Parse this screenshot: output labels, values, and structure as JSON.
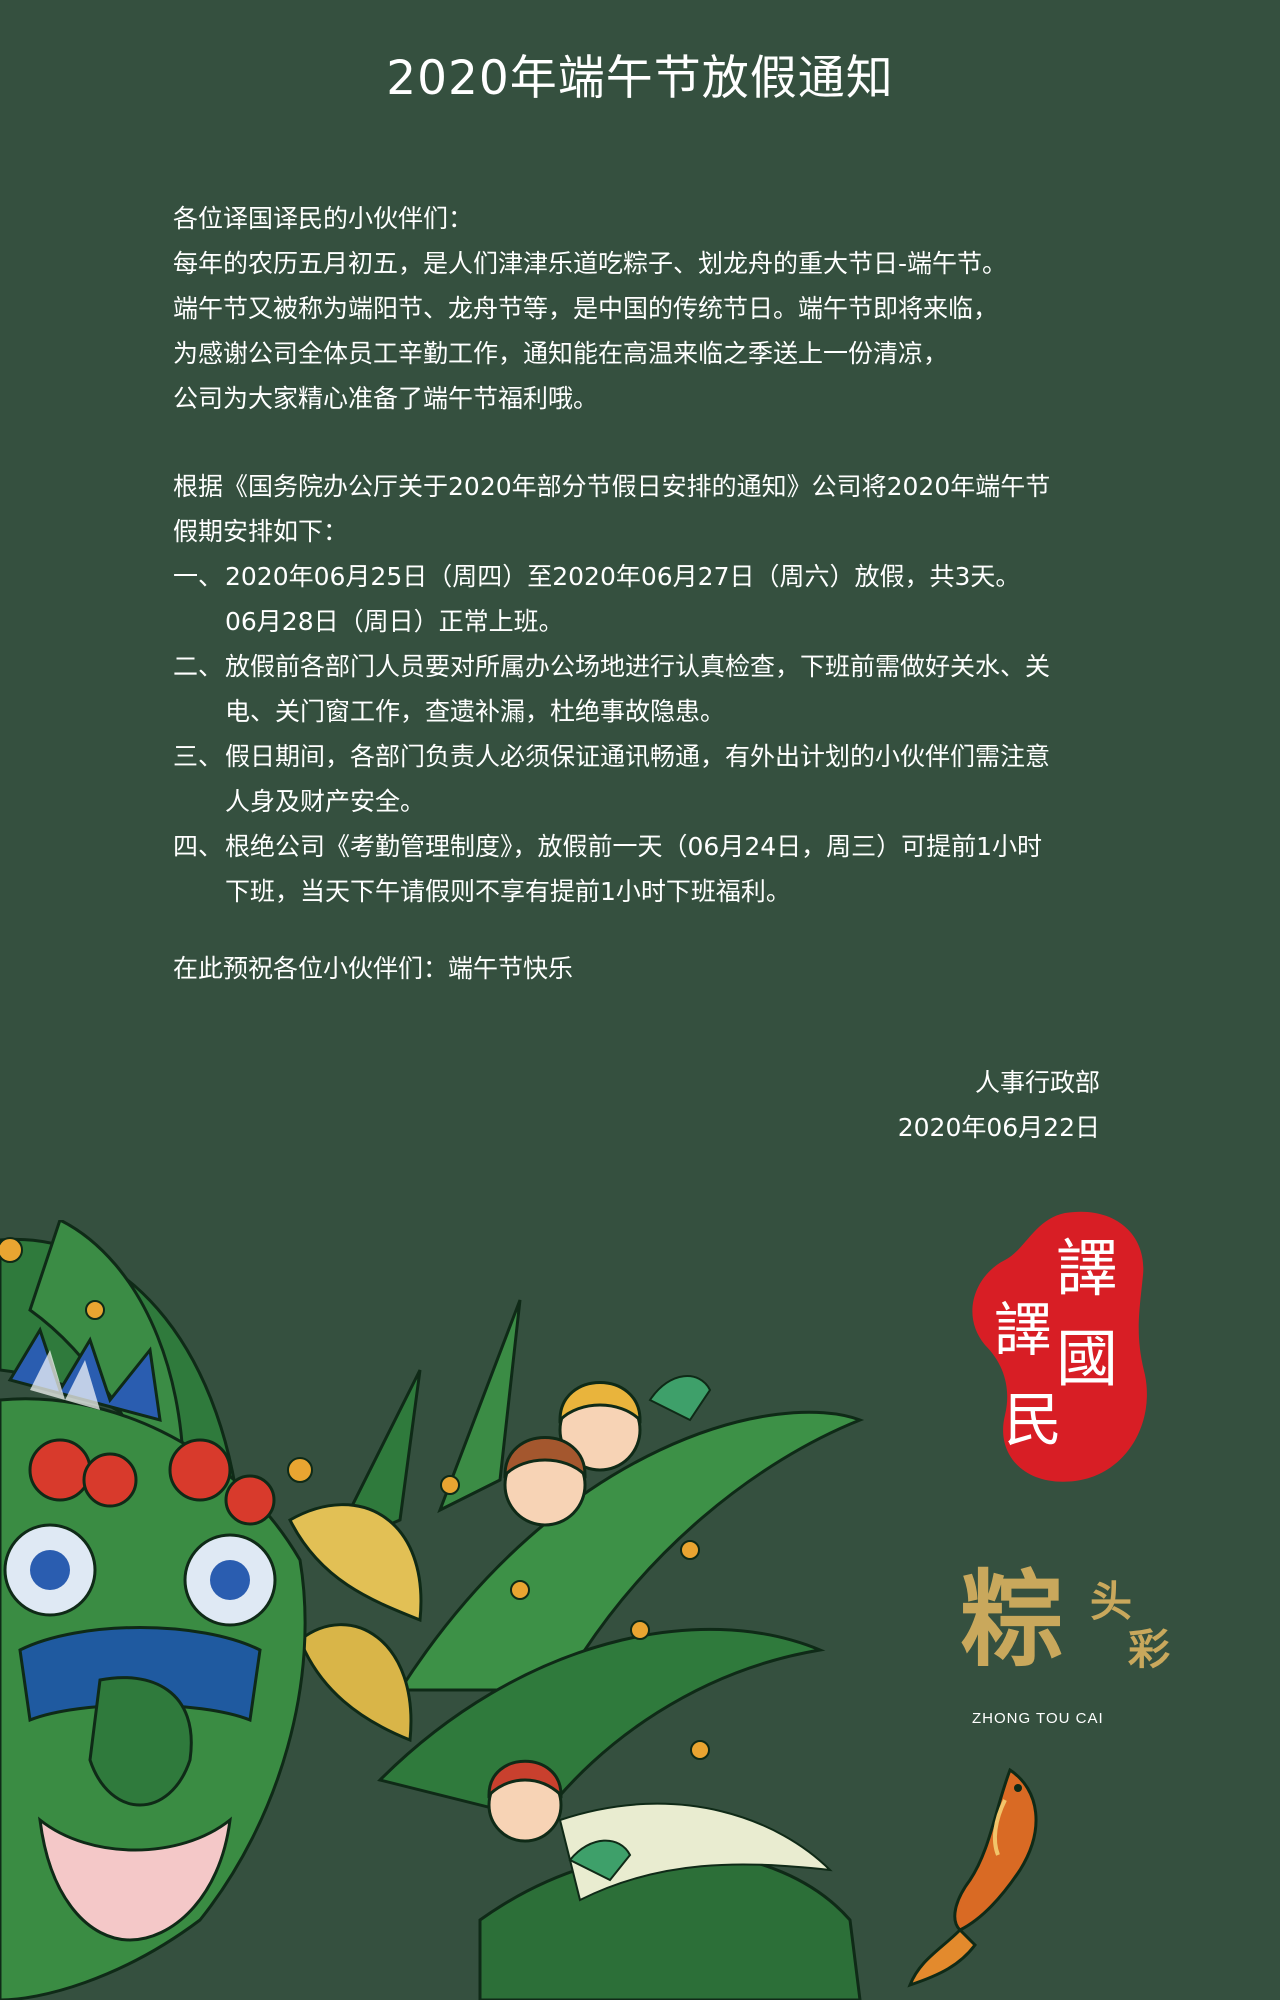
{
  "title": "2020年端午节放假通知",
  "greeting": "各位译国译民的小伙伴们：",
  "intro": [
    "每年的农历五月初五，是人们津津乐道吃粽子、划龙舟的重大节日-端午节。",
    "端午节又被称为端阳节、龙舟节等，是中国的传统节日。端午节即将来临，",
    "为感谢公司全体员工辛勤工作，通知能在高温来临之季送上一份清凉，",
    "公司为大家精心准备了端午节福利哦。"
  ],
  "basis": [
    "根据《国务院办公厅关于2020年部分节假日安排的通知》公司将2020年端午节",
    "假期安排如下："
  ],
  "items": [
    {
      "num": "一、",
      "lines": [
        "2020年06月25日（周四）至2020年06月27日（周六）放假，共3天。",
        "06月28日（周日）正常上班。"
      ]
    },
    {
      "num": "二、",
      "lines": [
        "放假前各部门人员要对所属办公场地进行认真检查，下班前需做好关水、关",
        "电、关门窗工作，查遗补漏，杜绝事故隐患。"
      ]
    },
    {
      "num": "三、",
      "lines": [
        "假日期间，各部门负责人必须保证通讯畅通，有外出计划的小伙伴们需注意",
        "人身及财产安全。"
      ]
    },
    {
      "num": "四、",
      "lines": [
        "根绝公司《考勤管理制度》，放假前一天（06月24日，周三）可提前1小时",
        "下班，当天下午请假则不享有提前1小时下班福利。"
      ]
    }
  ],
  "closing": "在此预祝各位小伙伴们：端午节快乐",
  "signature": {
    "department": "人事行政部",
    "date": "2020年06月22日"
  },
  "seal_text": "譯國譯民",
  "brand": {
    "logo_text": "粽头彩",
    "caption": "ZHONG TOU CAI"
  },
  "colors": {
    "background": "#35503f",
    "text": "#ffffff",
    "seal_red": "#d81e25",
    "gold": "#c9a85c"
  },
  "illustration": {
    "icon": "dragon-boat-festival-illustration"
  }
}
